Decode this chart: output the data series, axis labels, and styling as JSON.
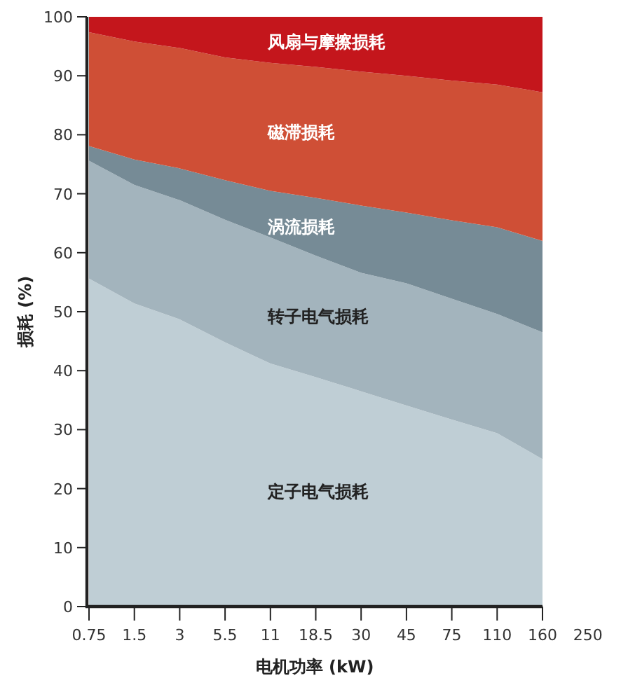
{
  "chart_data": {
    "type": "area",
    "stacked": true,
    "xlabel": "电机功率 (kW)",
    "ylabel": "损耗 (%)",
    "categories": [
      "0.75",
      "1.5",
      "3",
      "5.5",
      "11",
      "18.5",
      "30",
      "45",
      "75",
      "110",
      "160",
      "250"
    ],
    "ylim": [
      0,
      100
    ],
    "yticks": [
      0,
      10,
      20,
      30,
      40,
      50,
      60,
      70,
      80,
      90,
      100
    ],
    "grid": false,
    "legend": false,
    "series": [
      {
        "name": "定子电气损耗",
        "color": "#bfced5",
        "values": [
          55.6,
          51.4,
          48.7,
          44.8,
          41.2,
          38.9,
          36.5,
          34.1,
          31.7,
          29.4,
          25.0,
          null
        ]
      },
      {
        "name": "转子电气损耗",
        "color": "#a3b4bd",
        "values": [
          20.0,
          20.1,
          20.2,
          20.8,
          21.4,
          20.6,
          20.1,
          20.7,
          20.5,
          20.2,
          21.5,
          null
        ]
      },
      {
        "name": "涡流损耗",
        "color": "#768b96",
        "values": [
          2.5,
          4.3,
          5.4,
          6.7,
          7.9,
          9.8,
          11.4,
          12.0,
          13.3,
          14.7,
          15.5,
          null
        ]
      },
      {
        "name": "磁滞损耗",
        "color": "#cf4f36",
        "values": [
          19.3,
          20.0,
          20.4,
          20.8,
          21.7,
          22.2,
          22.7,
          23.2,
          23.7,
          24.2,
          25.2,
          null
        ]
      },
      {
        "name": "风扇与摩擦损耗",
        "color": "#c4161c",
        "values": [
          2.6,
          4.2,
          5.3,
          6.9,
          7.8,
          8.5,
          9.3,
          10.0,
          10.8,
          11.5,
          12.8,
          null
        ]
      }
    ]
  }
}
